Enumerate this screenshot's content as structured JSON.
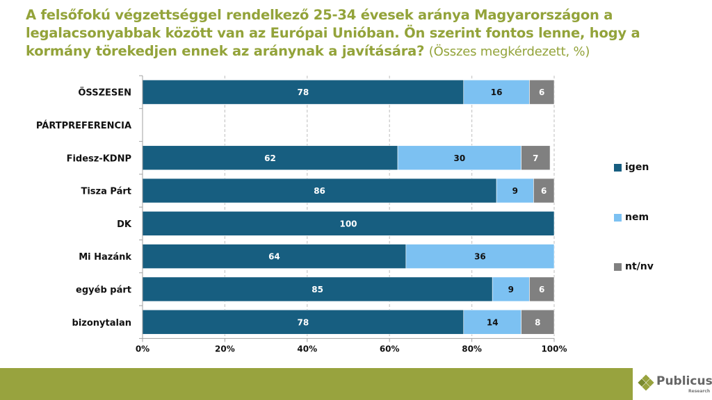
{
  "chart_data": {
    "type": "bar",
    "orientation": "horizontal",
    "stacked": true,
    "title": "A felsőfokú végzettséggel rendelkező 25-34 évesek aránya Magyarországon a legalacsonyabbak között van az Európai Unióban. Ön szerint fontos lenne, hogy a kormány törekedjen ennek az aránynak a javítására?",
    "subtitle": "(Összes megkérdezett, %)",
    "categories": [
      "ÖSSZESEN",
      "PÁRTPREFERENCIA",
      "Fidesz-KDNP",
      "Tisza Párt",
      "DK",
      "Mi Hazánk",
      "egyéb párt",
      "bizonytalan"
    ],
    "series": [
      {
        "name": "igen",
        "color": "#175e80",
        "label_color": "#ffffff",
        "values": [
          78,
          null,
          62,
          86,
          100,
          64,
          85,
          78
        ]
      },
      {
        "name": "nem",
        "color": "#7cc1f2",
        "label_color": "#111111",
        "values": [
          16,
          null,
          30,
          9,
          null,
          36,
          9,
          14
        ]
      },
      {
        "name": "nt/nv",
        "color": "#808080",
        "label_color": "#ffffff",
        "values": [
          6,
          null,
          7,
          6,
          null,
          null,
          6,
          8
        ]
      }
    ],
    "xlim": [
      0,
      100
    ],
    "xticks": [
      "0%",
      "20%",
      "40%",
      "60%",
      "80%",
      "100%"
    ],
    "xtick_values": [
      0,
      20,
      40,
      60,
      80,
      100
    ],
    "grid": true,
    "legend_position": "right"
  },
  "brand": {
    "name": "Publicus",
    "tagline": "Research",
    "accent": "#93a33a",
    "footer_color": "#98a33e"
  }
}
